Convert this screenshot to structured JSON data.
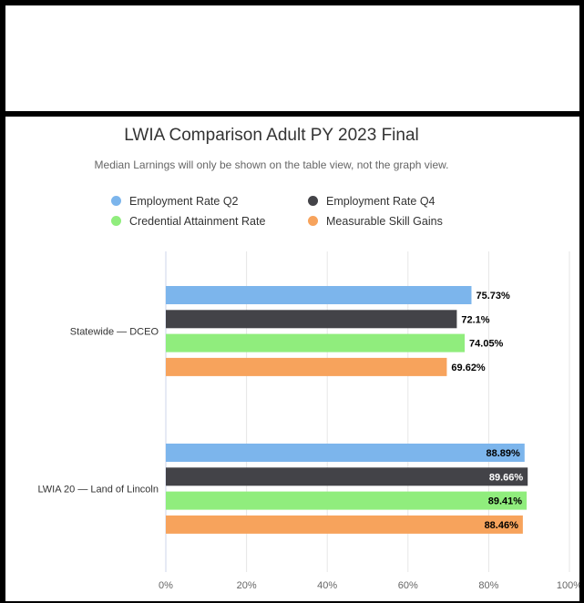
{
  "chart_data": {
    "type": "bar",
    "orientation": "horizontal",
    "title": "LWIA Comparison Adult PY 2023 Final",
    "subtitle": "Median Larnings will only be shown on the table view, not the graph view.",
    "categories": [
      "Statewide — DCEO",
      "LWIA 20 — Land of Lincoln"
    ],
    "series": [
      {
        "name": "Employment Rate Q2",
        "color": "#7cb5ec",
        "values": [
          75.73,
          88.89
        ],
        "labels": [
          "75.73%",
          "88.89%"
        ]
      },
      {
        "name": "Employment Rate Q4",
        "color": "#434348",
        "values": [
          72.1,
          89.66
        ],
        "labels": [
          "72.1%",
          "89.66%"
        ]
      },
      {
        "name": "Credential Attainment Rate",
        "color": "#90ed7d",
        "values": [
          74.05,
          89.41
        ],
        "labels": [
          "74.05%",
          "89.41%"
        ]
      },
      {
        "name": "Measurable Skill Gains",
        "color": "#f7a35c",
        "values": [
          69.62,
          88.46
        ],
        "labels": [
          "69.62%",
          "88.46%"
        ]
      }
    ],
    "xlim": [
      0,
      100
    ],
    "ticks": [
      "0%",
      "20%",
      "40%",
      "60%",
      "80%",
      "100%"
    ],
    "grid": true,
    "legend_position": "top"
  }
}
